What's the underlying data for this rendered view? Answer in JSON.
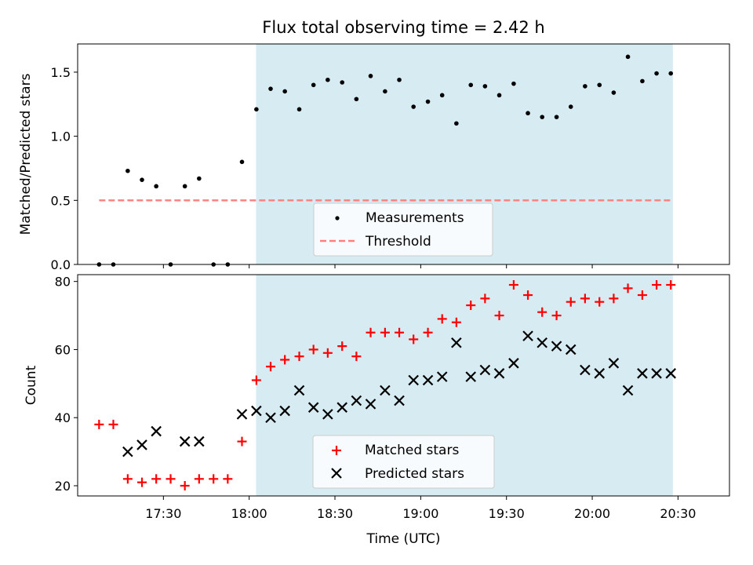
{
  "chart_data": [
    {
      "type": "scatter",
      "title": "Flux total observing time = 2.42 h",
      "xlabel": "",
      "ylabel": "Matched/Predicted stars",
      "xlim_minutes": [
        17.0,
        20.8
      ],
      "ylim": [
        0,
        1.72
      ],
      "yticks": [
        0.0,
        0.5,
        1.0,
        1.5
      ],
      "ytick_labels": [
        "0.0",
        "0.5",
        "1.0",
        "1.5"
      ],
      "shaded_span_hours": [
        18.04,
        20.47
      ],
      "series": [
        {
          "name": "Measurements",
          "x_hours": [
            17.125,
            17.208,
            17.292,
            17.375,
            17.458,
            17.542,
            17.625,
            17.708,
            17.792,
            17.875,
            17.958,
            18.042,
            18.125,
            18.208,
            18.292,
            18.375,
            18.458,
            18.542,
            18.625,
            18.708,
            18.792,
            18.875,
            18.958,
            19.042,
            19.125,
            19.208,
            19.292,
            19.375,
            19.458,
            19.542,
            19.625,
            19.708,
            19.792,
            19.875,
            19.958,
            20.042,
            20.125,
            20.208,
            20.292,
            20.375,
            20.458
          ],
          "values": [
            0,
            0,
            0.73,
            0.66,
            0.61,
            0,
            0.61,
            0.67,
            0,
            0,
            0.8,
            1.21,
            1.37,
            1.35,
            1.21,
            1.4,
            1.44,
            1.42,
            1.29,
            1.47,
            1.35,
            1.44,
            1.23,
            1.27,
            1.32,
            1.1,
            1.4,
            1.39,
            1.32,
            1.41,
            1.18,
            1.15,
            1.15,
            1.23,
            1.39,
            1.4,
            1.34,
            1.62,
            1.43,
            1.49,
            1.49
          ]
        },
        {
          "name": "Threshold",
          "x_hours": [
            17.125,
            20.458
          ],
          "values": [
            0.5,
            0.5
          ]
        }
      ],
      "legend": {
        "position": "bottom-center",
        "entries": [
          "Measurements",
          "Threshold"
        ]
      }
    },
    {
      "type": "scatter",
      "title": "",
      "xlabel": "Time (UTC)",
      "ylabel": "Count",
      "ylim": [
        17,
        82
      ],
      "yticks": [
        20,
        40,
        60,
        80
      ],
      "ytick_labels": [
        "20",
        "40",
        "60",
        "80"
      ],
      "xticks_hours": [
        17.5,
        18.0,
        18.5,
        19.0,
        19.5,
        20.0,
        20.5
      ],
      "xtick_labels": [
        "17:30",
        "18:00",
        "18:30",
        "19:00",
        "19:30",
        "20:00",
        "20:30"
      ],
      "shaded_span_hours": [
        18.04,
        20.47
      ],
      "series": [
        {
          "name": "Matched stars",
          "marker": "plus",
          "color": "#ff0000",
          "x_hours": [
            17.125,
            17.208,
            17.292,
            17.375,
            17.458,
            17.542,
            17.625,
            17.708,
            17.792,
            17.875,
            17.958,
            18.042,
            18.125,
            18.208,
            18.292,
            18.375,
            18.458,
            18.542,
            18.625,
            18.708,
            18.792,
            18.875,
            18.958,
            19.042,
            19.125,
            19.208,
            19.292,
            19.375,
            19.458,
            19.542,
            19.625,
            19.708,
            19.792,
            19.875,
            19.958,
            20.042,
            20.125,
            20.208,
            20.292,
            20.375,
            20.458
          ],
          "values": [
            38,
            38,
            22,
            21,
            22,
            22,
            20,
            22,
            22,
            22,
            33,
            51,
            55,
            57,
            58,
            60,
            59,
            61,
            58,
            65,
            65,
            65,
            63,
            65,
            69,
            68,
            73,
            75,
            70,
            79,
            76,
            71,
            70,
            74,
            75,
            74,
            75,
            78,
            76,
            79,
            79
          ]
        },
        {
          "name": "Predicted stars",
          "marker": "x",
          "color": "#000000",
          "x_hours": [
            17.292,
            17.375,
            17.458,
            17.625,
            17.708,
            17.958,
            18.042,
            18.125,
            18.208,
            18.292,
            18.375,
            18.458,
            18.542,
            18.625,
            18.708,
            18.792,
            18.875,
            18.958,
            19.042,
            19.125,
            19.208,
            19.292,
            19.375,
            19.458,
            19.542,
            19.625,
            19.708,
            19.792,
            19.875,
            19.958,
            20.042,
            20.125,
            20.208,
            20.292,
            20.375,
            20.458
          ],
          "values": [
            30,
            32,
            36,
            33,
            33,
            41,
            42,
            40,
            42,
            48,
            43,
            41,
            43,
            45,
            44,
            48,
            45,
            51,
            51,
            52,
            62,
            52,
            54,
            53,
            56,
            64,
            62,
            61,
            60,
            54,
            53,
            56,
            48,
            53,
            53,
            53
          ]
        }
      ],
      "legend": {
        "position": "bottom-center",
        "entries": [
          "Matched stars",
          "Predicted stars"
        ]
      }
    }
  ]
}
